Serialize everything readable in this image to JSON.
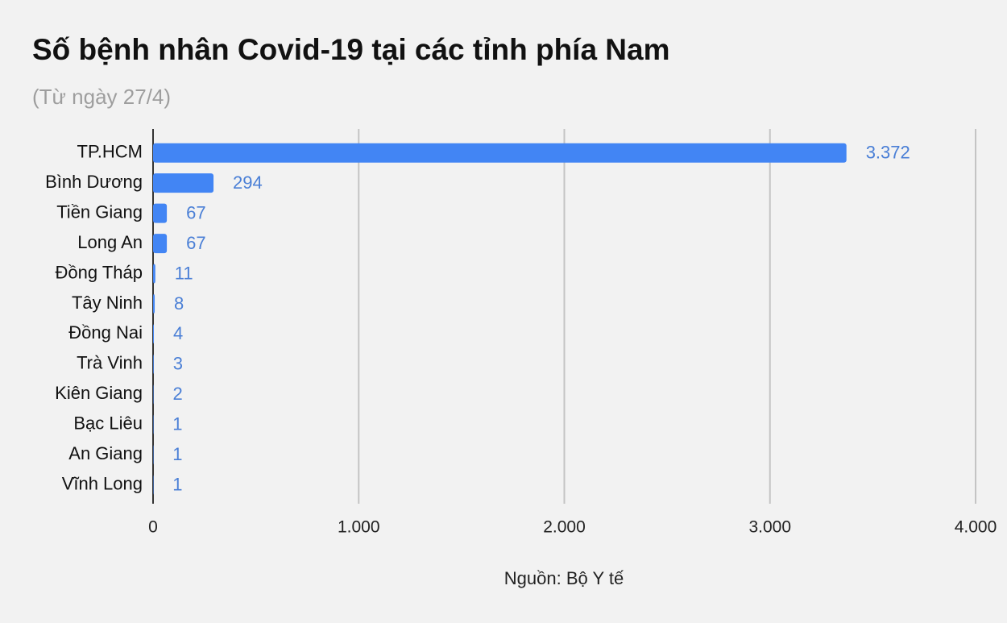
{
  "chart_data": {
    "type": "bar",
    "orientation": "horizontal",
    "title": "Số bệnh nhân Covid-19 tại các tỉnh phía Nam",
    "subtitle": "(Từ ngày 27/4)",
    "source": "Nguồn: Bộ Y tế",
    "categories": [
      "TP.HCM",
      "Bình Dương",
      "Tiền Giang",
      "Long An",
      "Đồng Tháp",
      "Tây Ninh",
      "Đồng Nai",
      "Trà Vinh",
      "Kiên Giang",
      "Bạc Liêu",
      "An Giang",
      "Vĩnh Long"
    ],
    "values": [
      3372,
      294,
      67,
      67,
      11,
      8,
      4,
      3,
      2,
      1,
      1,
      1
    ],
    "value_labels": [
      "3.372",
      "294",
      "67",
      "67",
      "11",
      "8",
      "4",
      "3",
      "2",
      "1",
      "1",
      "1"
    ],
    "color": "#4285f4",
    "xlim": [
      0,
      4000
    ],
    "xticks": [
      0,
      {
        "value": 1000,
        "label": "1.000"
      },
      {
        "value": 2000,
        "label": "2.000"
      },
      {
        "value": 3000,
        "label": "3.000"
      },
      {
        "value": 4000,
        "label": "4.000"
      }
    ],
    "grid": true
  }
}
